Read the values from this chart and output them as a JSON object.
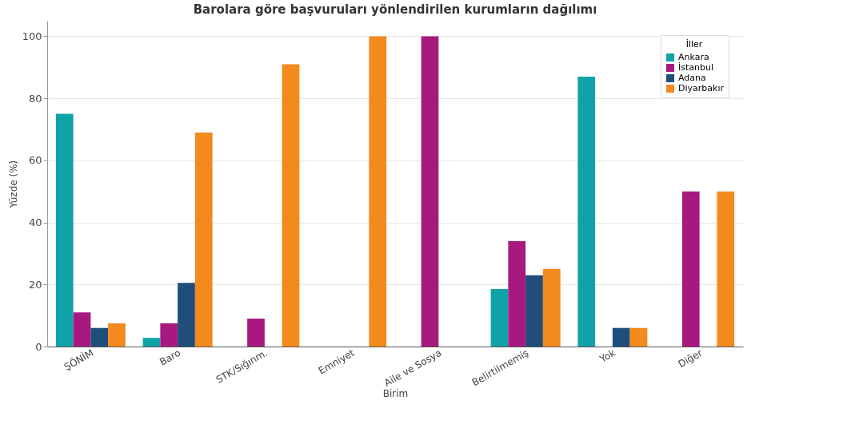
{
  "chart_data": {
    "type": "bar",
    "title": "Barolara göre başvuruları yönlendirilen kurumların dağılımı",
    "xlabel": "Birim",
    "ylabel": "Yüzde (%)",
    "legend_title": "İller",
    "categories": [
      "ŞÖNİM",
      "Baro",
      "STK/Sığınm.",
      "Emniyet",
      "Aile ve Sosya",
      "Belirtilmemiş",
      "Yok",
      "Diğer"
    ],
    "series": [
      {
        "name": "Ankara",
        "color": "#0fa3a8",
        "values": [
          75,
          2.8,
          null,
          null,
          null,
          18.5,
          87,
          null
        ]
      },
      {
        "name": "İstanbul",
        "color": "#a8197f",
        "values": [
          11,
          7.5,
          9,
          null,
          100,
          34,
          null,
          50
        ]
      },
      {
        "name": "Adana",
        "color": "#1f4e7a",
        "values": [
          6,
          20.5,
          null,
          null,
          null,
          23,
          6,
          null
        ]
      },
      {
        "name": "Diyarbakır",
        "color": "#f28a1e",
        "values": [
          7.5,
          69,
          91,
          100,
          null,
          25,
          6,
          50
        ]
      }
    ],
    "ylim": [
      0,
      105
    ],
    "yticks": [
      0,
      20,
      40,
      60,
      80,
      100
    ],
    "grid": "y",
    "legend": "top right"
  }
}
